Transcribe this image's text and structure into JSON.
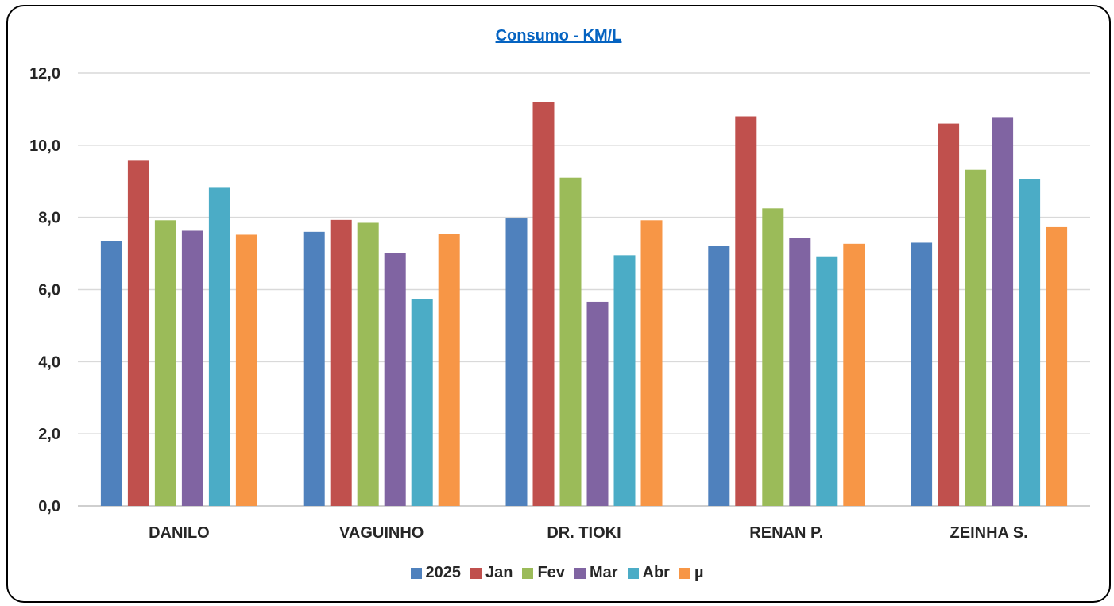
{
  "chart_data": {
    "type": "bar",
    "title": "Consumo - KM/L",
    "xlabel": "",
    "ylabel": "",
    "ylim": [
      0,
      12
    ],
    "yticks": [
      "0,0",
      "2,0",
      "4,0",
      "6,0",
      "8,0",
      "10,0",
      "12,0"
    ],
    "ytick_values": [
      0,
      2,
      4,
      6,
      8,
      10,
      12
    ],
    "grid": true,
    "legend_position": "bottom",
    "categories": [
      "DANILO",
      "VAGUINHO",
      "DR. TIOKI",
      "RENAN P.",
      "ZEINHA S."
    ],
    "series": [
      {
        "name": "2025",
        "color": "#4F81BD",
        "values": [
          7.35,
          7.6,
          7.97,
          7.2,
          7.3
        ]
      },
      {
        "name": "Jan",
        "color": "#C0504D",
        "values": [
          9.57,
          7.93,
          11.2,
          10.8,
          10.6
        ]
      },
      {
        "name": "Fev",
        "color": "#9BBB59",
        "values": [
          7.92,
          7.85,
          9.1,
          8.25,
          9.32
        ]
      },
      {
        "name": "Mar",
        "color": "#8064A2",
        "values": [
          7.63,
          7.02,
          5.66,
          7.42,
          10.78
        ]
      },
      {
        "name": "Abr",
        "color": "#4BACC6",
        "values": [
          8.82,
          5.74,
          6.95,
          6.92,
          9.05
        ]
      },
      {
        "name": "µ",
        "color": "#F79646",
        "values": [
          7.52,
          7.55,
          7.92,
          7.27,
          7.73
        ]
      }
    ]
  }
}
